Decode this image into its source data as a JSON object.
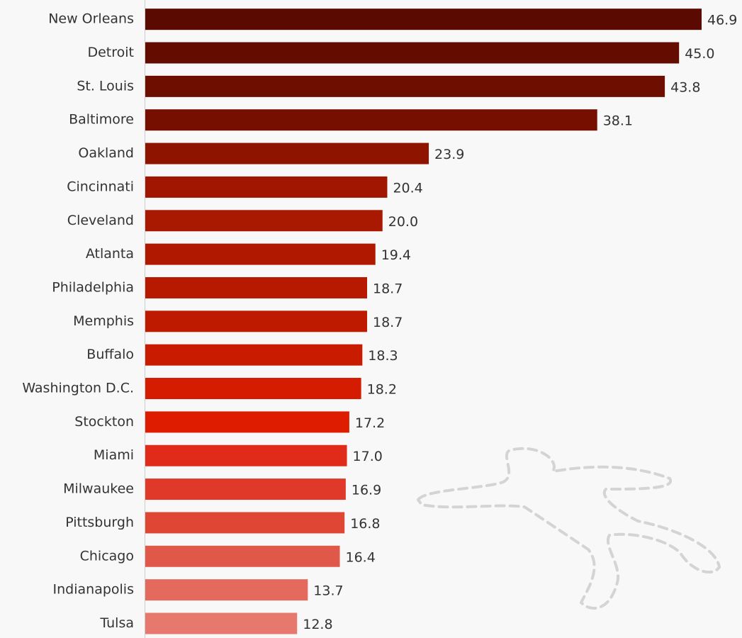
{
  "chart_data": {
    "type": "bar",
    "orientation": "horizontal",
    "categories": [
      "New Orleans",
      "Detroit",
      "St. Louis",
      "Baltimore",
      "Oakland",
      "Cincinnati",
      "Cleveland",
      "Atlanta",
      "Philadelphia",
      "Memphis",
      "Buffalo",
      "Washington D.C.",
      "Stockton",
      "Miami",
      "Milwaukee",
      "Pittsburgh",
      "Chicago",
      "Indianapolis",
      "Tulsa"
    ],
    "values": [
      46.9,
      45.0,
      43.8,
      38.1,
      23.9,
      20.4,
      20.0,
      19.4,
      18.7,
      18.7,
      18.3,
      18.2,
      17.2,
      17.0,
      16.9,
      16.8,
      16.4,
      13.7,
      12.8
    ],
    "value_labels": [
      "46.9",
      "45.0",
      "43.8",
      "38.1",
      "23.9",
      "20.4",
      "20.0",
      "19.4",
      "18.7",
      "18.7",
      "18.3",
      "18.2",
      "17.2",
      "17.0",
      "16.9",
      "16.8",
      "16.4",
      "13.7",
      "12.8"
    ],
    "colors": [
      "#5a0a00",
      "#650c00",
      "#6e0e00",
      "#760f00",
      "#8e1400",
      "#a01600",
      "#a91800",
      "#b01800",
      "#b71900",
      "#bd1a00",
      "#c81b00",
      "#d51c00",
      "#de1c00",
      "#e02b1a",
      "#e0392a",
      "#e04634",
      "#e0584a",
      "#e56a5e",
      "#e7786d"
    ]
  }
}
